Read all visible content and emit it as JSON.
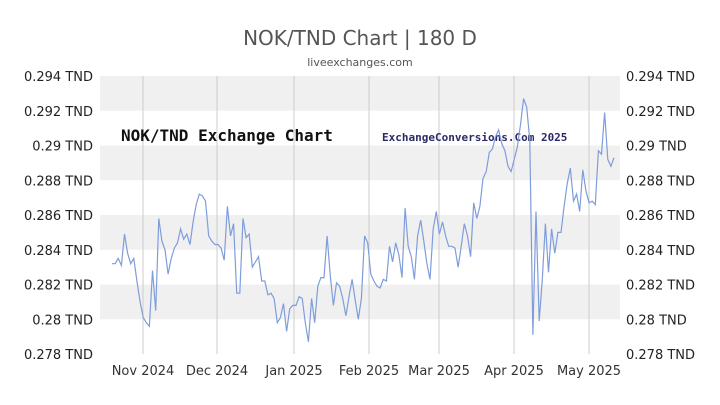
{
  "header": {
    "title": "NOK/TND Chart | 180 D",
    "subtitle": "liveexchanges.com"
  },
  "overlays": {
    "chart_label": "NOK/TND Exchange Chart",
    "watermark": "ExchangeConversions.Com 2025"
  },
  "colors": {
    "line": "#7f9ddb",
    "band": "#f0f0f0",
    "grid": "#cccccc"
  },
  "chart_data": {
    "type": "line",
    "title": "NOK/TND Chart | 180 D",
    "ylim": [
      0.278,
      0.294
    ],
    "y_ticks": [
      {
        "value": 0.294,
        "label": "0.294 TND"
      },
      {
        "value": 0.292,
        "label": "0.292 TND"
      },
      {
        "value": 0.29,
        "label": "0.29 TND"
      },
      {
        "value": 0.288,
        "label": "0.288 TND"
      },
      {
        "value": 0.286,
        "label": "0.286 TND"
      },
      {
        "value": 0.284,
        "label": "0.284 TND"
      },
      {
        "value": 0.282,
        "label": "0.282 TND"
      },
      {
        "value": 0.28,
        "label": "0.28 TND"
      },
      {
        "value": 0.278,
        "label": "0.278 TND"
      }
    ],
    "x_ticks": [
      "Nov 2024",
      "Dec 2024",
      "Jan 2025",
      "Feb 2025",
      "Mar 2025",
      "Apr 2025",
      "May 2025"
    ],
    "grid": true,
    "series": [
      {
        "values": [
          0.2832,
          0.2832,
          0.2835,
          0.2831,
          0.2849,
          0.2838,
          0.2832,
          0.2835,
          0.2822,
          0.281,
          0.2801,
          0.2798,
          0.2796,
          0.2828,
          0.2805,
          0.2858,
          0.2845,
          0.284,
          0.2826,
          0.2835,
          0.2841,
          0.2844,
          0.2852,
          0.2846,
          0.2849,
          0.2843,
          0.2856,
          0.2866,
          0.2872,
          0.2871,
          0.2868,
          0.2848,
          0.2845,
          0.2843,
          0.2843,
          0.2841,
          0.2834,
          0.2865,
          0.2848,
          0.2855,
          0.2815,
          0.2815,
          0.2858,
          0.2847,
          0.2849,
          0.283,
          0.2833,
          0.2836,
          0.2822,
          0.2822,
          0.2814,
          0.2815,
          0.2812,
          0.2798,
          0.2801,
          0.2809,
          0.2793,
          0.2806,
          0.2808,
          0.2808,
          0.2813,
          0.2812,
          0.2798,
          0.2787,
          0.2812,
          0.2798,
          0.2819,
          0.2824,
          0.2824,
          0.2848,
          0.2825,
          0.2808,
          0.2821,
          0.2819,
          0.2812,
          0.2802,
          0.2813,
          0.2823,
          0.2811,
          0.28,
          0.2812,
          0.2848,
          0.2844,
          0.2826,
          0.2822,
          0.2819,
          0.2818,
          0.2823,
          0.2822,
          0.2842,
          0.2833,
          0.2844,
          0.2837,
          0.2824,
          0.2864,
          0.2842,
          0.2836,
          0.2823,
          0.2848,
          0.2857,
          0.2845,
          0.2832,
          0.2823,
          0.2852,
          0.2862,
          0.2849,
          0.2856,
          0.2848,
          0.2842,
          0.2842,
          0.2841,
          0.283,
          0.2842,
          0.2855,
          0.2848,
          0.2836,
          0.2867,
          0.2858,
          0.2865,
          0.2881,
          0.2885,
          0.2896,
          0.2898,
          0.2905,
          0.2909,
          0.2901,
          0.2897,
          0.2888,
          0.2885,
          0.2892,
          0.2899,
          0.2912,
          0.2927,
          0.2922,
          0.2903,
          0.2791,
          0.2862,
          0.2799,
          0.2823,
          0.2855,
          0.2827,
          0.2852,
          0.2838,
          0.285,
          0.285,
          0.2865,
          0.2878,
          0.2887,
          0.2868,
          0.2872,
          0.2862,
          0.2886,
          0.2874,
          0.2867,
          0.2868,
          0.2866,
          0.2897,
          0.2895,
          0.2919,
          0.2892,
          0.2888,
          0.2893
        ]
      }
    ]
  }
}
